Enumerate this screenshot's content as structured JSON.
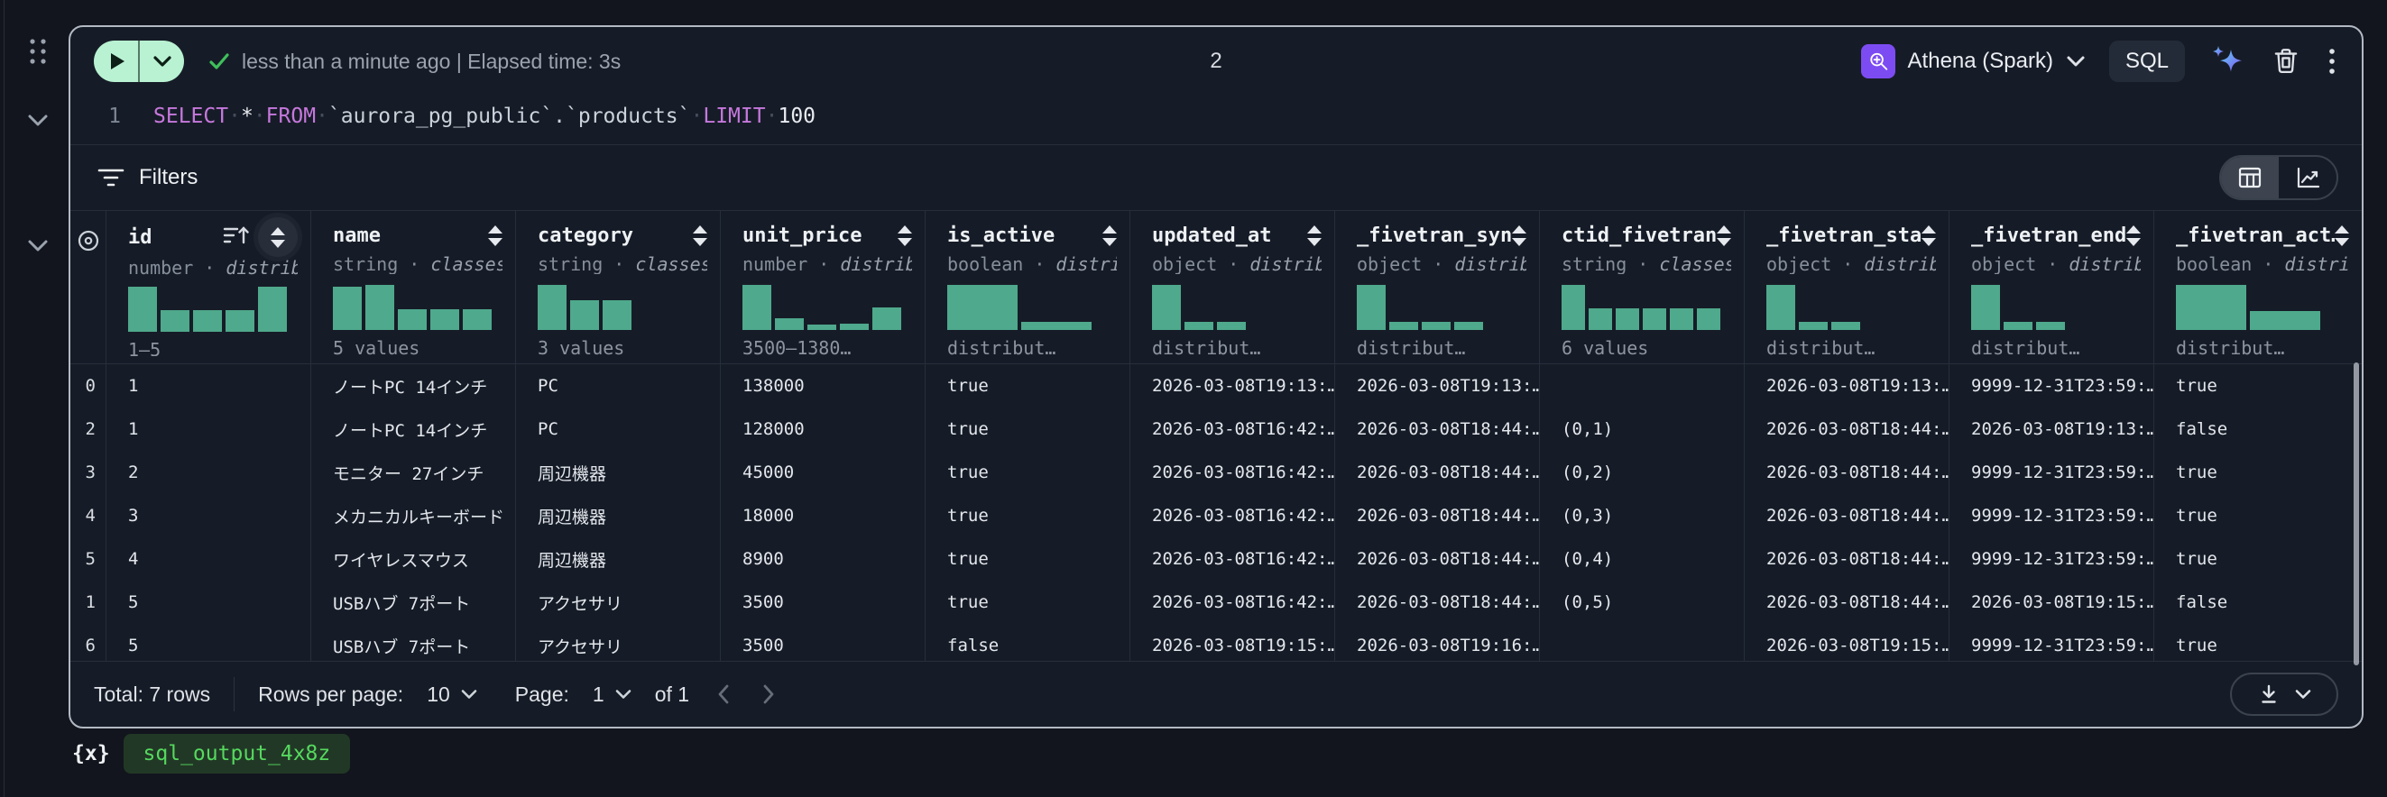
{
  "colors": {
    "histogram": "#4fa98c",
    "run_pill": "#b9f2d2",
    "keyword": "#c678dd",
    "identifier": "#ccd2da",
    "check": "#3fbf5c",
    "athena": "#7c4cf2",
    "badge_bg": "#223826",
    "badge_text": "#55d95e",
    "card_border": "#b3b9c3"
  },
  "toolbar": {
    "status_text": "less than a minute ago | Elapsed time: 3s",
    "execution_count": "2",
    "engine_label": "Athena (Spark)",
    "language_label": "SQL"
  },
  "editor": {
    "line_number": "1",
    "tokens": [
      {
        "text": "SELECT",
        "type": "keyword"
      },
      {
        "text": "*",
        "type": "operator"
      },
      {
        "text": "FROM",
        "type": "keyword"
      },
      {
        "text": "`aurora_pg_public`.`products`",
        "type": "identifier"
      },
      {
        "text": "LIMIT",
        "type": "keyword"
      },
      {
        "text": "100",
        "type": "number"
      }
    ]
  },
  "output": {
    "filters_label": "Filters",
    "table": {
      "columns": [
        {
          "name": "id",
          "type": "number",
          "type_detail": "distribut…",
          "summary": "1–5",
          "sorted": true,
          "histogram": {
            "bars": [
              1,
              0.47,
              0.47,
              0.47,
              1
            ],
            "wide": false
          }
        },
        {
          "name": "name",
          "type": "string",
          "type_detail": "classes (…",
          "summary": "5 values",
          "sorted": false,
          "histogram": {
            "bars": [
              0.95,
              1,
              0.45,
              0.45,
              0.45
            ],
            "wide": false
          }
        },
        {
          "name": "category",
          "type": "string",
          "type_detail": "classes (…",
          "summary": "3 values",
          "sorted": false,
          "histogram": {
            "bars": [
              1,
              0.66,
              0.66
            ],
            "wide": false
          }
        },
        {
          "name": "unit_price",
          "type": "number",
          "type_detail": "distribut…",
          "summary": "3500–1380…",
          "sorted": false,
          "histogram": {
            "bars": [
              1,
              0.26,
              0.12,
              0.14,
              0.5
            ],
            "wide": false
          }
        },
        {
          "name": "is_active",
          "type": "boolean",
          "type_detail": "distribu…",
          "summary": "distribut…",
          "sorted": false,
          "histogram": {
            "bars": [
              1,
              0.17
            ],
            "wide": true
          }
        },
        {
          "name": "updated_at",
          "type": "object",
          "type_detail": "distribut…",
          "summary": "distribut…",
          "sorted": false,
          "histogram": {
            "bars": [
              1,
              0.18,
              0.18
            ],
            "wide": false
          }
        },
        {
          "name": "_fivetran_syn…",
          "type": "object",
          "type_detail": "distribut…",
          "summary": "distribut…",
          "sorted": false,
          "histogram": {
            "bars": [
              1,
              0.18,
              0.18,
              0.18
            ],
            "wide": false
          }
        },
        {
          "name": "ctid_fivetran…",
          "type": "string",
          "type_detail": "classes (…",
          "summary": "6 values",
          "sorted": false,
          "histogram": {
            "bars": [
              1,
              0.48,
              0.48,
              0.48,
              0.48,
              0.48
            ],
            "wide": false
          }
        },
        {
          "name": "_fivetran_sta…",
          "type": "object",
          "type_detail": "distribut…",
          "summary": "distribut…",
          "sorted": false,
          "histogram": {
            "bars": [
              1,
              0.18,
              0.18
            ],
            "wide": false
          }
        },
        {
          "name": "_fivetran_end",
          "type": "object",
          "type_detail": "distribut…",
          "summary": "distribut…",
          "sorted": false,
          "histogram": {
            "bars": [
              1,
              0.18,
              0.18
            ],
            "wide": false
          }
        },
        {
          "name": "_fivetran_act…",
          "type": "boolean",
          "type_detail": "distribu…",
          "summary": "distribut…",
          "sorted": false,
          "histogram": {
            "bars": [
              1,
              0.42
            ],
            "wide": true
          }
        }
      ],
      "rows": [
        {
          "index": "0",
          "cells": [
            "1",
            "ノートPC 14インチ",
            "PC",
            "138000",
            "true",
            "2026-03-08T19:13:…",
            "2026-03-08T19:13:…",
            "",
            "2026-03-08T19:13:…",
            "9999-12-31T23:59:…",
            "true"
          ]
        },
        {
          "index": "2",
          "cells": [
            "1",
            "ノートPC 14インチ",
            "PC",
            "128000",
            "true",
            "2026-03-08T16:42:…",
            "2026-03-08T18:44:…",
            "(0,1)",
            "2026-03-08T18:44:…",
            "2026-03-08T19:13:…",
            "false"
          ]
        },
        {
          "index": "3",
          "cells": [
            "2",
            "モニター 27インチ",
            "周辺機器",
            "45000",
            "true",
            "2026-03-08T16:42:…",
            "2026-03-08T18:44:…",
            "(0,2)",
            "2026-03-08T18:44:…",
            "9999-12-31T23:59:…",
            "true"
          ]
        },
        {
          "index": "4",
          "cells": [
            "3",
            "メカニカルキーボード",
            "周辺機器",
            "18000",
            "true",
            "2026-03-08T16:42:…",
            "2026-03-08T18:44:…",
            "(0,3)",
            "2026-03-08T18:44:…",
            "9999-12-31T23:59:…",
            "true"
          ]
        },
        {
          "index": "5",
          "cells": [
            "4",
            "ワイヤレスマウス",
            "周辺機器",
            "8900",
            "true",
            "2026-03-08T16:42:…",
            "2026-03-08T18:44:…",
            "(0,4)",
            "2026-03-08T18:44:…",
            "9999-12-31T23:59:…",
            "true"
          ]
        },
        {
          "index": "1",
          "cells": [
            "5",
            "USBハブ 7ポート",
            "アクセサリ",
            "3500",
            "true",
            "2026-03-08T16:42:…",
            "2026-03-08T18:44:…",
            "(0,5)",
            "2026-03-08T18:44:…",
            "2026-03-08T19:15:…",
            "false"
          ]
        },
        {
          "index": "6",
          "cells": [
            "5",
            "USBハブ 7ポート",
            "アクセサリ",
            "3500",
            "false",
            "2026-03-08T19:15:…",
            "2026-03-08T19:16:…",
            "",
            "2026-03-08T19:15:…",
            "9999-12-31T23:59:…",
            "true"
          ]
        }
      ]
    },
    "footer": {
      "total": "Total: 7 rows",
      "rows_per_page_label": "Rows per page:",
      "rows_per_page_value": "10",
      "page_label": "Page:",
      "page_value": "1",
      "page_of": "of 1"
    }
  },
  "variable": {
    "prefix": "{x}",
    "name": "sql_output_4x8z"
  }
}
